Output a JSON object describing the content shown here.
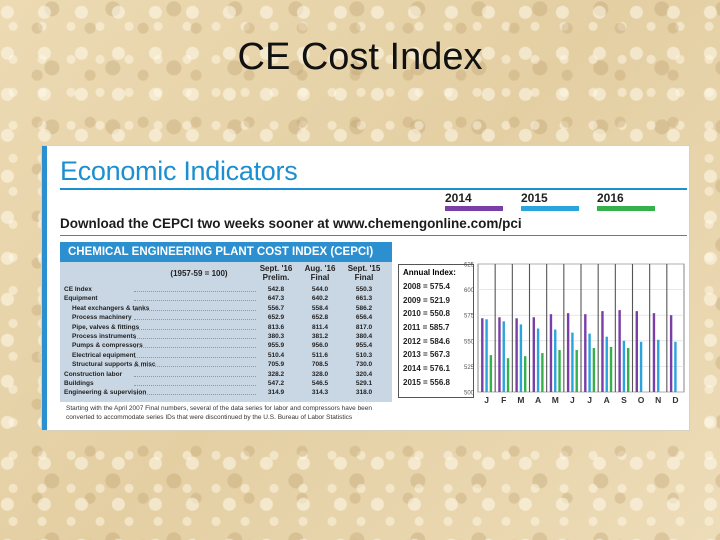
{
  "slide": {
    "title": "CE Cost Index"
  },
  "panel": {
    "heading": "Economic Indicators",
    "download_text": "Download the CEPCI two weeks sooner at www.chemengonline.com/pci",
    "legend": [
      {
        "label": "2014",
        "color": "#7a3fa6"
      },
      {
        "label": "2015",
        "color": "#2ba3dd"
      },
      {
        "label": "2016",
        "color": "#35b04a"
      }
    ]
  },
  "table": {
    "title": "CHEMICAL ENGINEERING PLANT COST INDEX (CEPCI)",
    "basis": "(1957-59 = 100)",
    "columns": [
      {
        "line1": "Sept. '16",
        "line2": "Prelim."
      },
      {
        "line1": "Aug. '16",
        "line2": "Final"
      },
      {
        "line1": "Sept. '15",
        "line2": "Final"
      }
    ],
    "rows": [
      {
        "label": "CE Index",
        "indent": false,
        "values": [
          "542.8",
          "544.0",
          "550.3"
        ]
      },
      {
        "label": "Equipment",
        "indent": false,
        "values": [
          "647.3",
          "640.2",
          "661.3"
        ]
      },
      {
        "label": "Heat exchangers & tanks",
        "indent": true,
        "values": [
          "556.7",
          "558.4",
          "586.2"
        ]
      },
      {
        "label": "Process machinery",
        "indent": true,
        "values": [
          "652.9",
          "652.8",
          "656.4"
        ]
      },
      {
        "label": "Pipe, valves & fittings",
        "indent": true,
        "values": [
          "813.6",
          "811.4",
          "817.0"
        ]
      },
      {
        "label": "Process instruments",
        "indent": true,
        "values": [
          "380.3",
          "381.2",
          "380.4"
        ]
      },
      {
        "label": "Pumps & compressors",
        "indent": true,
        "values": [
          "955.9",
          "956.0",
          "955.4"
        ]
      },
      {
        "label": "Electrical equipment",
        "indent": true,
        "values": [
          "510.4",
          "511.6",
          "510.3"
        ]
      },
      {
        "label": "Structural supports & misc",
        "indent": true,
        "values": [
          "705.9",
          "708.5",
          "730.0"
        ]
      },
      {
        "label": "Construction labor",
        "indent": false,
        "values": [
          "328.2",
          "328.0",
          "320.4"
        ]
      },
      {
        "label": "Buildings",
        "indent": false,
        "values": [
          "547.2",
          "546.5",
          "529.1"
        ]
      },
      {
        "label": "Engineering & supervision",
        "indent": false,
        "values": [
          "314.9",
          "314.3",
          "318.0"
        ]
      }
    ],
    "footnote": "Starting with the April 2007 Final numbers, several of the data series for labor and compressors have been converted to accommodate series IDs that were discontinued by the U.S. Bureau of Labor Statistics"
  },
  "annual_index": {
    "title": "Annual Index:",
    "entries": [
      "2008 = 575.4",
      "2009 = 521.9",
      "2010 = 550.8",
      "2011 = 585.7",
      "2012 = 584.6",
      "2013 = 567.3",
      "2014 = 576.1",
      "2015 = 556.8"
    ]
  },
  "chart_data": {
    "type": "bar",
    "categories": [
      "J",
      "F",
      "M",
      "A",
      "M",
      "J",
      "J",
      "A",
      "S",
      "O",
      "N",
      "D"
    ],
    "ylim": [
      500,
      625
    ],
    "yticks": [
      "500",
      "525",
      "550",
      "575",
      "600",
      "625"
    ],
    "grid": true,
    "series": [
      {
        "name": "2014",
        "color": "#7a3fa6",
        "values": [
          572,
          573,
          572,
          573,
          576,
          577,
          576,
          579,
          580,
          579,
          577,
          575
        ]
      },
      {
        "name": "2015",
        "color": "#2ba3dd",
        "values": [
          571,
          569,
          566,
          562,
          561,
          558,
          557,
          554,
          550,
          549,
          551,
          549
        ]
      },
      {
        "name": "2016",
        "color": "#35b04a",
        "values": [
          536,
          533,
          535,
          538,
          541,
          541,
          543,
          544,
          543,
          null,
          null,
          null
        ]
      }
    ]
  }
}
